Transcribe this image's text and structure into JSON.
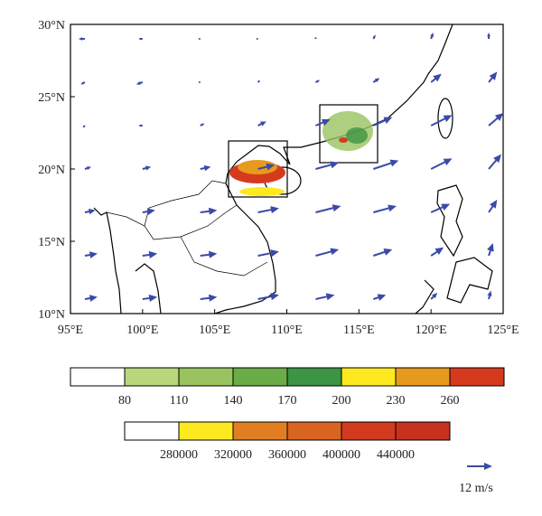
{
  "chart_data": {
    "type": "quiver",
    "xlim": [
      95,
      125
    ],
    "ylim": [
      10,
      30
    ],
    "xticks": [
      {
        "value": 95,
        "label": "95°E"
      },
      {
        "value": 100,
        "label": "100°E"
      },
      {
        "value": 105,
        "label": "105°E"
      },
      {
        "value": 110,
        "label": "110°E"
      },
      {
        "value": 115,
        "label": "115°E"
      },
      {
        "value": 120,
        "label": "120°E"
      },
      {
        "value": 125,
        "label": "125°E"
      }
    ],
    "yticks": [
      {
        "value": 10,
        "label": "10°N"
      },
      {
        "value": 15,
        "label": "15°N"
      },
      {
        "value": 20,
        "label": "20°N"
      },
      {
        "value": 25,
        "label": "25°N"
      },
      {
        "value": 30,
        "label": "30°N"
      }
    ],
    "vector_color": "#3a4aa8",
    "lons": [
      96,
      100,
      104,
      108,
      112,
      116,
      120,
      124
    ],
    "lats": [
      11,
      14,
      17,
      20,
      23,
      26,
      29
    ],
    "u": [
      [
        6,
        7,
        8,
        10,
        9,
        6,
        3,
        1
      ],
      [
        6,
        7,
        8,
        10,
        11,
        9,
        6,
        2
      ],
      [
        5,
        6,
        8,
        10,
        12,
        11,
        9,
        4
      ],
      [
        3,
        4,
        5,
        8,
        11,
        12,
        10,
        6
      ],
      [
        -1,
        -2,
        2,
        4,
        7,
        9,
        10,
        7
      ],
      [
        -2,
        -3,
        -1,
        1,
        2,
        3,
        5,
        4
      ],
      [
        -3,
        -2,
        -1,
        -1,
        0,
        1,
        1,
        0
      ]
    ],
    "v": [
      [
        1,
        1,
        1,
        2,
        2,
        2,
        3,
        4
      ],
      [
        1,
        1,
        1,
        2,
        3,
        3,
        4,
        6
      ],
      [
        1,
        1,
        1,
        2,
        3,
        3,
        4,
        6
      ],
      [
        1,
        1,
        1,
        2,
        3,
        4,
        5,
        7
      ],
      [
        -1,
        0,
        1,
        2,
        3,
        4,
        5,
        6
      ],
      [
        -1,
        -1,
        0,
        1,
        1,
        2,
        4,
        5
      ],
      [
        0,
        0,
        0,
        0,
        1,
        2,
        3,
        3
      ]
    ],
    "colorbars": [
      {
        "colors": [
          "#ffffff",
          "#b8d67a",
          "#99c35f",
          "#6aad46",
          "#3c9445",
          "#fde91f",
          "#e69b1c",
          "#d63a1e"
        ],
        "labels": [
          80,
          110,
          140,
          170,
          200,
          230,
          260
        ]
      },
      {
        "colors": [
          "#ffffff",
          "#fde91f",
          "#e27e22",
          "#d9641f",
          "#d23a1e",
          "#c8311e"
        ],
        "labels": [
          280000,
          320000,
          360000,
          400000,
          440000
        ]
      }
    ],
    "reference_vector": {
      "value": 12,
      "label": "12 m/s"
    }
  }
}
